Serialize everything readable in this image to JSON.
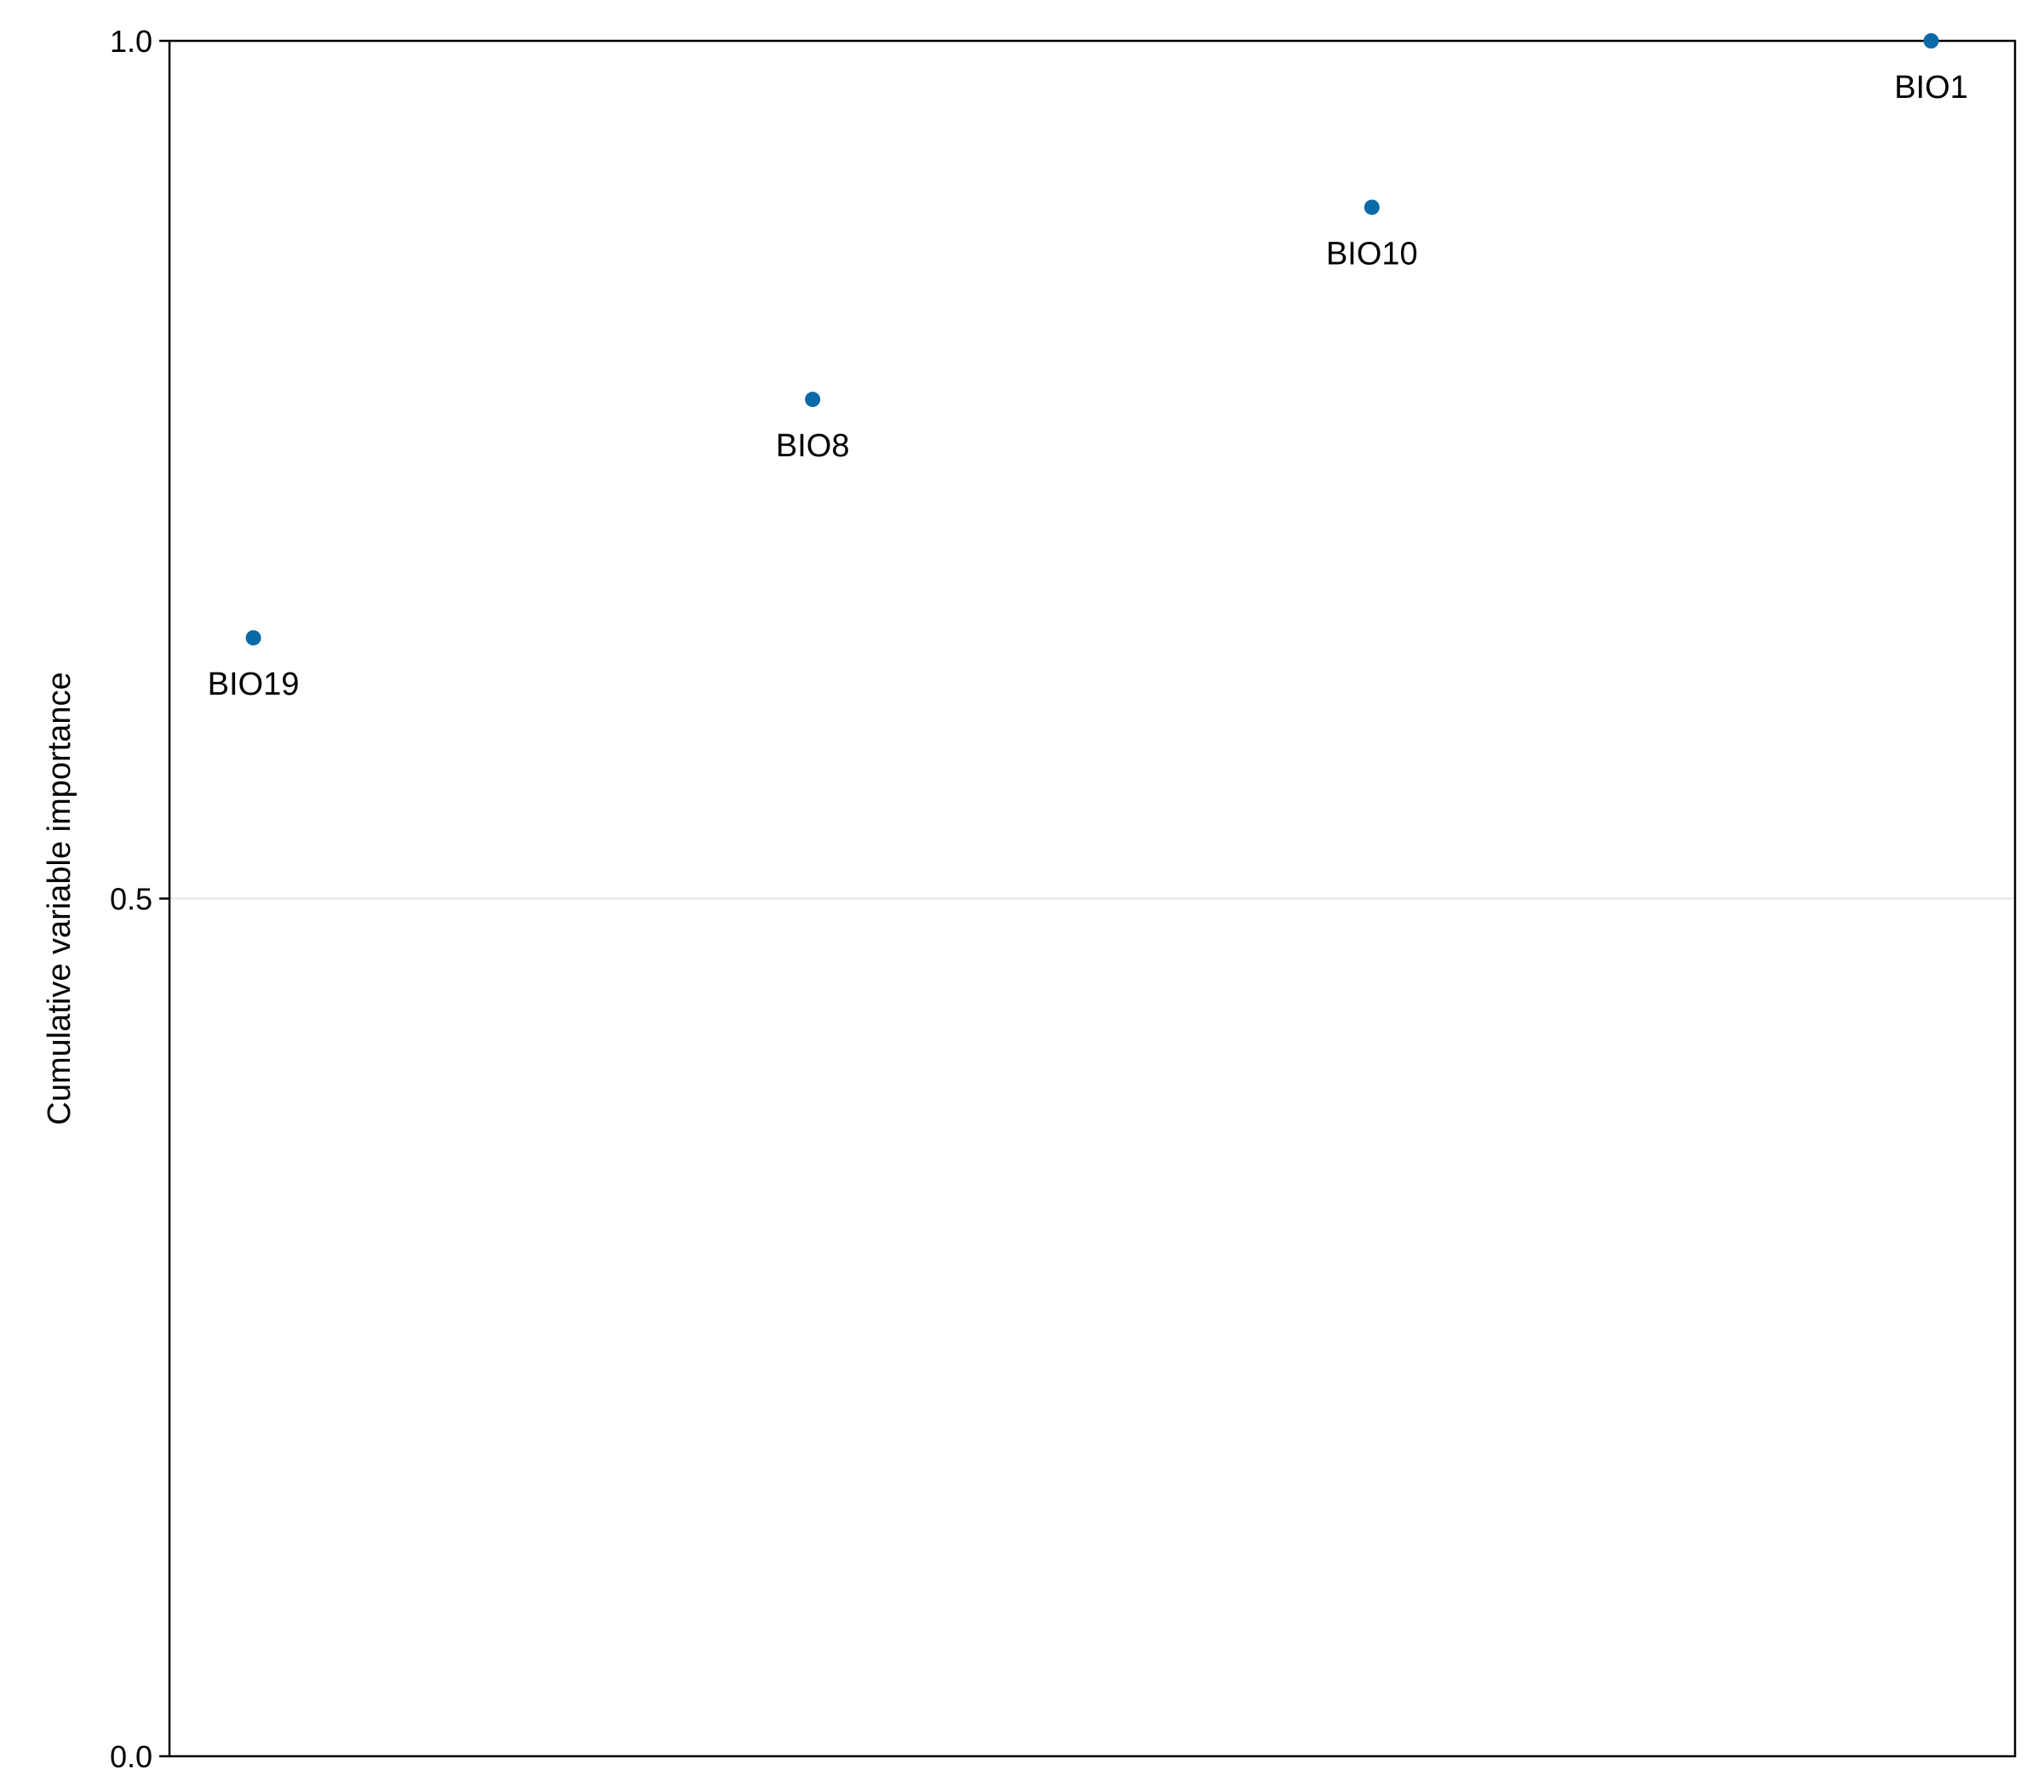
{
  "chart_data": {
    "type": "scatter",
    "title": "",
    "xlabel": "",
    "ylabel": "Cumulative variable importance",
    "x": [
      1,
      2,
      3,
      4
    ],
    "y": [
      0.652,
      0.791,
      0.903,
      1.0
    ],
    "point_labels": [
      "BIO19",
      "BIO8",
      "BIO10",
      "BIO1"
    ],
    "xlim": [
      0.85,
      4.15
    ],
    "ylim": [
      0.0,
      1.0
    ],
    "yticks": [
      0.0,
      0.5,
      1.0
    ],
    "ytick_labels": [
      "0.0",
      "0.5",
      "1.0"
    ],
    "grid": "horizontal",
    "point_color": "#0a6aa8",
    "gridline_color": "#e6e6e6",
    "axis_color": "#000000"
  }
}
